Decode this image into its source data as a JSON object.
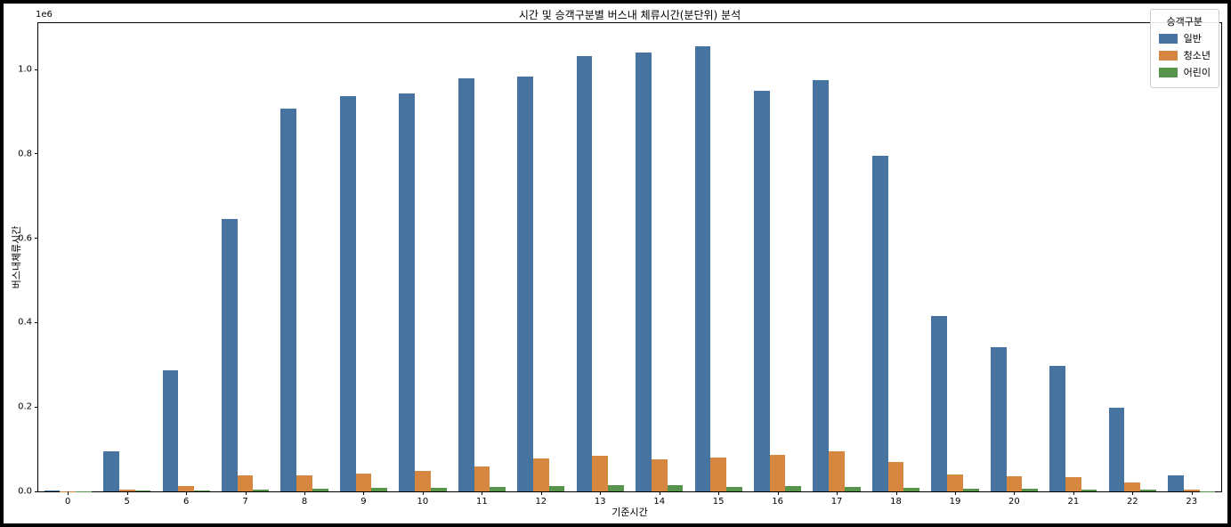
{
  "figure": {
    "title": "시간 및 승객구분별 버스내 체류시간(분단위) 분석",
    "xlabel": "기준시간",
    "ylabel": "버스내체류시간",
    "offset_text": "1e6"
  },
  "legend": {
    "title": "승객구분",
    "entries": [
      {
        "label": "일반",
        "color": "#46739F"
      },
      {
        "label": "청소년",
        "color": "#D6873F"
      },
      {
        "label": "어린이",
        "color": "#55944A"
      }
    ]
  },
  "chart_data": {
    "type": "bar",
    "title": "시간 및 승객구분별 버스내 체류시간(분단위) 분석",
    "xlabel": "기준시간",
    "ylabel": "버스내체류시간",
    "y_scale_offset": "1e6",
    "grid": false,
    "legend_title": "승객구분",
    "legend_position": "upper right",
    "categories": [
      "0",
      "5",
      "6",
      "7",
      "8",
      "9",
      "10",
      "11",
      "12",
      "13",
      "14",
      "15",
      "16",
      "17",
      "18",
      "19",
      "20",
      "21",
      "22",
      "23"
    ],
    "series": [
      {
        "name": "일반",
        "color": "#46739F",
        "values": [
          2000,
          94000,
          286000,
          645000,
          908000,
          936000,
          943000,
          980000,
          983000,
          1032000,
          1040000,
          1056000,
          949000,
          975000,
          795000,
          415000,
          341000,
          298000,
          199000,
          38000
        ]
      },
      {
        "name": "청소년",
        "color": "#D6873F",
        "values": [
          500,
          4000,
          13000,
          38000,
          37000,
          42000,
          49000,
          60000,
          78000,
          85000,
          75000,
          80000,
          87000,
          95000,
          70000,
          41000,
          35000,
          34000,
          21000,
          3500
        ]
      },
      {
        "name": "어린이",
        "color": "#55944A",
        "values": [
          200,
          1200,
          2500,
          5000,
          6500,
          7800,
          8800,
          10000,
          13500,
          14000,
          14000,
          11000,
          13000,
          11500,
          8500,
          6500,
          6000,
          4500,
          3500,
          1000
        ]
      }
    ],
    "ylim": [
      0,
      1110000
    ],
    "yticks": [
      0,
      200000,
      400000,
      600000,
      800000,
      1000000
    ],
    "ytick_labels": [
      "0.0",
      "0.2",
      "0.4",
      "0.6",
      "0.8",
      "1.0"
    ],
    "bar_group_fraction": 0.8
  }
}
